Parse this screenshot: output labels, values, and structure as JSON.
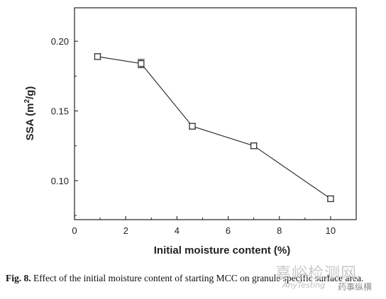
{
  "chart_data": {
    "type": "line",
    "xlabel": "Initial moisture content (%)",
    "ylabel_main": "SSA (m",
    "ylabel_sup": "2",
    "ylabel_end": "/g)",
    "xlim": [
      0,
      11
    ],
    "ylim": [
      0.072,
      0.224
    ],
    "xticks": [
      0,
      2,
      4,
      6,
      8,
      10
    ],
    "yticks": [
      0.1,
      0.15,
      0.2
    ],
    "xtick_labels": [
      "0",
      "2",
      "4",
      "6",
      "8",
      "10"
    ],
    "ytick_labels": [
      "0.10",
      "0.15",
      "0.20"
    ],
    "grid": false,
    "series": [
      {
        "x": [
          0.9,
          2.6,
          4.6,
          7.0,
          10.0
        ],
        "y": [
          0.189,
          0.184,
          0.139,
          0.125,
          0.087
        ],
        "yerr": [
          0.002,
          0.003,
          0.002,
          0.002,
          0.002
        ],
        "color": "#333333",
        "marker": "open-square"
      }
    ]
  },
  "caption": {
    "label": "Fig. 8.",
    "text": " Effect of the initial moisture content of starting MCC on granule specific surface area."
  },
  "watermark": {
    "main": "嘉峪检测网",
    "sub": "AnyTesting",
    "wechat": "药事纵横"
  }
}
